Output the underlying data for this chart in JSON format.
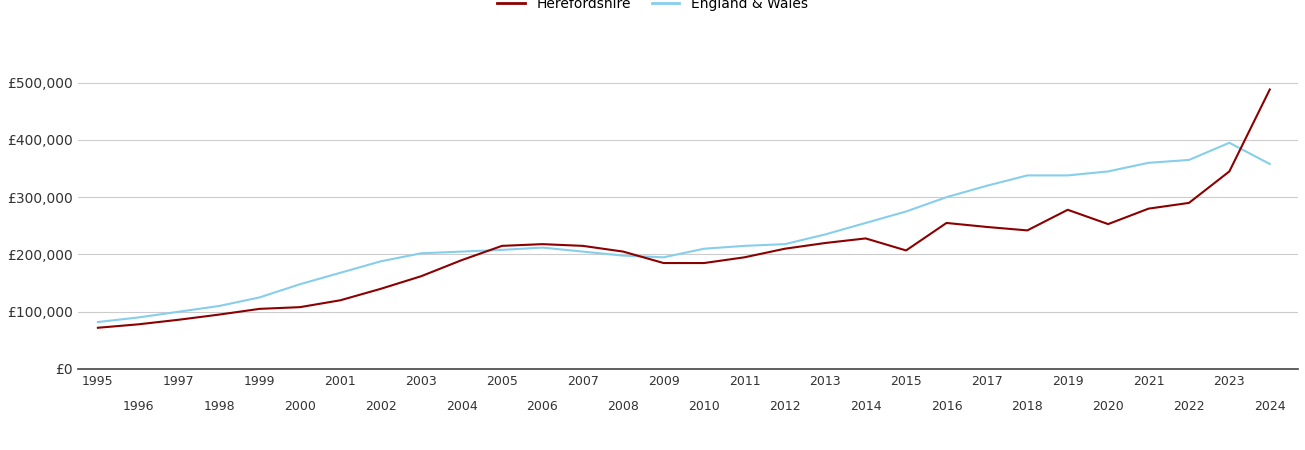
{
  "herefordshire_years": [
    1995,
    1996,
    1997,
    1998,
    1999,
    2000,
    2001,
    2002,
    2003,
    2004,
    2005,
    2006,
    2007,
    2008,
    2009,
    2010,
    2011,
    2012,
    2013,
    2014,
    2015,
    2016,
    2017,
    2018,
    2019,
    2020,
    2021,
    2022,
    2023,
    2024
  ],
  "herefordshire_values": [
    72000,
    78000,
    86000,
    95000,
    105000,
    108000,
    120000,
    140000,
    162000,
    190000,
    215000,
    218000,
    215000,
    205000,
    185000,
    185000,
    195000,
    210000,
    220000,
    228000,
    207000,
    255000,
    248000,
    242000,
    278000,
    253000,
    280000,
    290000,
    345000,
    488000
  ],
  "england_wales_years": [
    1995,
    1996,
    1997,
    1998,
    1999,
    2000,
    2001,
    2002,
    2003,
    2004,
    2005,
    2006,
    2007,
    2008,
    2009,
    2010,
    2011,
    2012,
    2013,
    2014,
    2015,
    2016,
    2017,
    2018,
    2019,
    2020,
    2021,
    2022,
    2023,
    2024
  ],
  "england_wales_values": [
    82000,
    90000,
    100000,
    110000,
    125000,
    148000,
    168000,
    188000,
    202000,
    205000,
    208000,
    212000,
    205000,
    198000,
    195000,
    210000,
    215000,
    218000,
    235000,
    255000,
    275000,
    300000,
    320000,
    338000,
    338000,
    345000,
    360000,
    365000,
    395000,
    358000
  ],
  "herefordshire_color": "#8B0000",
  "england_wales_color": "#87CEEB",
  "herefordshire_label": "Herefordshire",
  "england_wales_label": "England & Wales",
  "ylim": [
    0,
    550000
  ],
  "yticks": [
    0,
    100000,
    200000,
    300000,
    400000,
    500000
  ],
  "ytick_labels": [
    "£0",
    "£100,000",
    "£200,000",
    "£300,000",
    "£400,000",
    "£500,000"
  ],
  "xticks_odd": [
    1995,
    1997,
    1999,
    2001,
    2003,
    2005,
    2007,
    2009,
    2011,
    2013,
    2015,
    2017,
    2019,
    2021,
    2023
  ],
  "xticks_even": [
    1996,
    1998,
    2000,
    2002,
    2004,
    2006,
    2008,
    2010,
    2012,
    2014,
    2016,
    2018,
    2020,
    2022,
    2024
  ],
  "background_color": "#ffffff",
  "grid_color": "#cccccc",
  "line_width": 1.5,
  "xlim": [
    1994.5,
    2024.7
  ]
}
